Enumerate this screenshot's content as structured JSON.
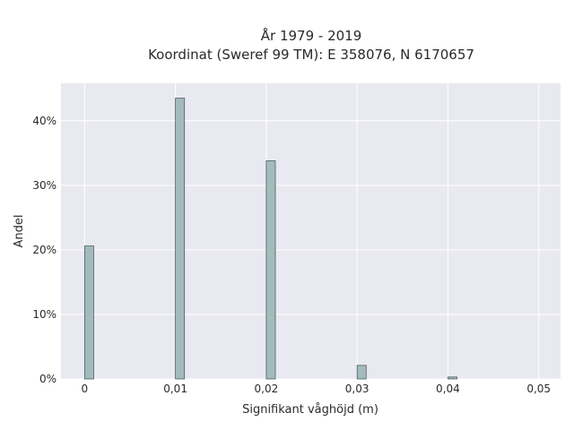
{
  "chart_data": {
    "type": "bar",
    "title_line1": "År 1979 - 2019",
    "title_line2": "Koordinat (Sweref 99 TM): E 358076, N 6170657",
    "xlabel": "Signifikant våghöjd (m)",
    "ylabel": "Andel",
    "xlim": [
      -0.0026,
      0.0524
    ],
    "ylim": [
      0,
      0.458
    ],
    "x_ticks": [
      0,
      0.01,
      0.02,
      0.03,
      0.04,
      0.05
    ],
    "x_tick_labels": [
      "0",
      "0,01",
      "0,02",
      "0,03",
      "0,04",
      "0,05"
    ],
    "y_ticks": [
      0,
      0.1,
      0.2,
      0.3,
      0.4
    ],
    "y_tick_labels": [
      "0%",
      "10%",
      "20%",
      "30%",
      "40%"
    ],
    "bar_width": 0.001,
    "x": [
      0.0005,
      0.0105,
      0.0205,
      0.0305,
      0.0405
    ],
    "values": [
      0.206,
      0.435,
      0.338,
      0.021,
      0.003
    ],
    "grid": true,
    "colors": {
      "plot_bg": "#e9e9f1",
      "grid": "#ffffff",
      "bar_fill": "#a3bbbd",
      "bar_stroke": "#3f4e50"
    }
  }
}
